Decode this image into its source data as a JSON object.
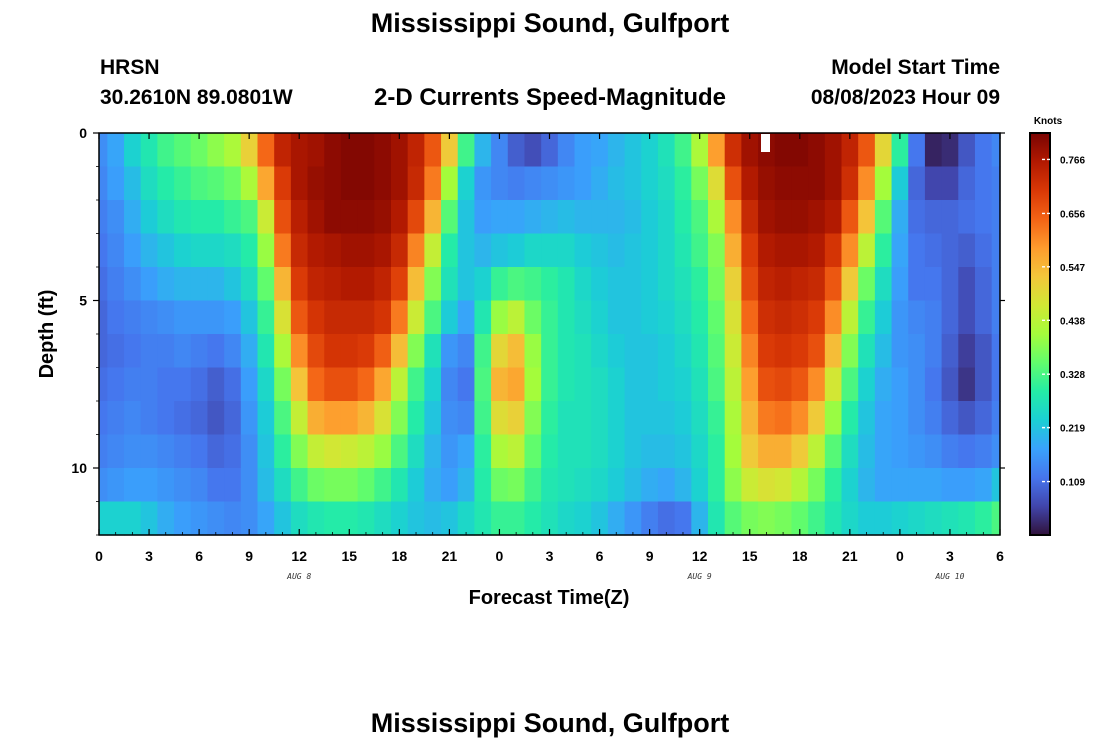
{
  "header": {
    "title": "Mississippi Sound, Gulfport",
    "station_id": "HRSN",
    "coords": "30.2610N  89.0801W",
    "subtitle": "2-D Currents Speed-Magnitude",
    "start_label": "Model Start Time",
    "start_value": "08/08/2023 Hour 09"
  },
  "footer": {
    "second_title": "Mississippi Sound, Gulfport"
  },
  "chart_data": {
    "type": "heatmap",
    "title": "2-D Currents Speed-Magnitude",
    "xlabel": "Forecast Time(Z)",
    "ylabel": "Depth (ft)",
    "x_range_hours": [
      0,
      54
    ],
    "y_range_ft": [
      0,
      12
    ],
    "x_tick_labels": [
      "0",
      "3",
      "6",
      "9",
      "12",
      "15",
      "18",
      "21",
      "0",
      "3",
      "6",
      "9",
      "12",
      "15",
      "18",
      "21",
      "0",
      "3",
      "6"
    ],
    "x_date_labels": [
      {
        "label": "AUG 8",
        "hour": 12
      },
      {
        "label": "AUG 9",
        "hour": 36
      },
      {
        "label": "AUG 10",
        "hour": 51
      }
    ],
    "y_ticks": [
      0,
      5,
      10
    ],
    "colorbar": {
      "label": "Knots",
      "min": 0.0,
      "max": 0.82,
      "ticks": [
        0.766,
        0.656,
        0.547,
        0.438,
        0.328,
        0.219,
        0.109
      ],
      "colors": [
        "#30123b",
        "#4145ab",
        "#4675ed",
        "#39a2fc",
        "#1bcfd4",
        "#24eca6",
        "#61fc6c",
        "#a4fc3b",
        "#d1e834",
        "#f3c63a",
        "#fe9b2d",
        "#f36315",
        "#d93806",
        "#b11901",
        "#7a0402"
      ]
    },
    "time_hours": [
      0,
      1,
      2,
      3,
      4,
      5,
      6,
      7,
      8,
      9,
      10,
      11,
      12,
      13,
      14,
      15,
      16,
      17,
      18,
      19,
      20,
      21,
      22,
      23,
      24,
      25,
      26,
      27,
      28,
      29,
      30,
      31,
      32,
      33,
      34,
      35,
      36,
      37,
      38,
      39,
      40,
      41,
      42,
      43,
      44,
      45,
      46,
      47,
      48,
      49,
      50,
      51,
      52,
      53,
      54
    ],
    "depths_ft": [
      0.5,
      1.5,
      2.5,
      3.5,
      4.5,
      5.5,
      6.5,
      7.5,
      8.5,
      9.5,
      10.5,
      11.5
    ],
    "speed_knots": [
      [
        0.15,
        0.18,
        0.24,
        0.28,
        0.32,
        0.34,
        0.36,
        0.39,
        0.42,
        0.51,
        0.64,
        0.74,
        0.77,
        0.78,
        0.8,
        0.81,
        0.81,
        0.8,
        0.78,
        0.74,
        0.66,
        0.52,
        0.32,
        0.2,
        0.14,
        0.09,
        0.07,
        0.1,
        0.14,
        0.17,
        0.18,
        0.2,
        0.22,
        0.24,
        0.27,
        0.32,
        0.42,
        0.58,
        0.72,
        0.78,
        0.8,
        0.81,
        0.81,
        0.8,
        0.78,
        0.74,
        0.66,
        0.5,
        0.3,
        0.12,
        0.02,
        0.03,
        0.08,
        0.12,
        0.14
      ],
      [
        0.14,
        0.17,
        0.21,
        0.26,
        0.29,
        0.31,
        0.33,
        0.34,
        0.36,
        0.42,
        0.57,
        0.7,
        0.77,
        0.79,
        0.8,
        0.81,
        0.81,
        0.8,
        0.78,
        0.73,
        0.62,
        0.41,
        0.24,
        0.16,
        0.14,
        0.13,
        0.14,
        0.15,
        0.16,
        0.17,
        0.19,
        0.21,
        0.22,
        0.24,
        0.26,
        0.3,
        0.37,
        0.49,
        0.67,
        0.76,
        0.79,
        0.8,
        0.8,
        0.8,
        0.78,
        0.72,
        0.6,
        0.41,
        0.23,
        0.1,
        0.06,
        0.06,
        0.1,
        0.12,
        0.13
      ],
      [
        0.13,
        0.15,
        0.19,
        0.23,
        0.26,
        0.28,
        0.29,
        0.29,
        0.31,
        0.33,
        0.46,
        0.67,
        0.75,
        0.78,
        0.8,
        0.8,
        0.8,
        0.79,
        0.76,
        0.68,
        0.55,
        0.34,
        0.22,
        0.17,
        0.18,
        0.18,
        0.19,
        0.2,
        0.21,
        0.2,
        0.2,
        0.2,
        0.21,
        0.23,
        0.25,
        0.29,
        0.33,
        0.42,
        0.6,
        0.73,
        0.78,
        0.79,
        0.79,
        0.78,
        0.76,
        0.66,
        0.53,
        0.34,
        0.19,
        0.11,
        0.1,
        0.1,
        0.11,
        0.12,
        0.13
      ],
      [
        0.12,
        0.14,
        0.17,
        0.2,
        0.22,
        0.24,
        0.25,
        0.25,
        0.26,
        0.29,
        0.4,
        0.62,
        0.73,
        0.76,
        0.77,
        0.78,
        0.78,
        0.77,
        0.73,
        0.61,
        0.45,
        0.29,
        0.22,
        0.2,
        0.22,
        0.23,
        0.25,
        0.25,
        0.25,
        0.23,
        0.22,
        0.21,
        0.22,
        0.23,
        0.25,
        0.28,
        0.32,
        0.38,
        0.56,
        0.7,
        0.76,
        0.77,
        0.77,
        0.76,
        0.71,
        0.6,
        0.44,
        0.3,
        0.18,
        0.12,
        0.11,
        0.1,
        0.09,
        0.11,
        0.13
      ],
      [
        0.11,
        0.13,
        0.15,
        0.17,
        0.19,
        0.2,
        0.2,
        0.2,
        0.22,
        0.26,
        0.35,
        0.55,
        0.7,
        0.74,
        0.75,
        0.76,
        0.76,
        0.74,
        0.69,
        0.54,
        0.38,
        0.27,
        0.22,
        0.24,
        0.31,
        0.33,
        0.32,
        0.3,
        0.28,
        0.25,
        0.23,
        0.22,
        0.22,
        0.23,
        0.25,
        0.27,
        0.3,
        0.37,
        0.51,
        0.68,
        0.74,
        0.75,
        0.74,
        0.73,
        0.66,
        0.52,
        0.36,
        0.26,
        0.17,
        0.12,
        0.12,
        0.1,
        0.07,
        0.1,
        0.13
      ],
      [
        0.1,
        0.12,
        0.13,
        0.14,
        0.15,
        0.16,
        0.16,
        0.16,
        0.17,
        0.22,
        0.31,
        0.48,
        0.66,
        0.71,
        0.73,
        0.73,
        0.73,
        0.71,
        0.62,
        0.46,
        0.33,
        0.23,
        0.18,
        0.28,
        0.4,
        0.44,
        0.36,
        0.31,
        0.28,
        0.26,
        0.24,
        0.22,
        0.22,
        0.23,
        0.24,
        0.26,
        0.29,
        0.35,
        0.48,
        0.64,
        0.72,
        0.73,
        0.72,
        0.7,
        0.6,
        0.44,
        0.31,
        0.23,
        0.16,
        0.14,
        0.13,
        0.1,
        0.07,
        0.1,
        0.13
      ],
      [
        0.1,
        0.11,
        0.12,
        0.13,
        0.13,
        0.14,
        0.13,
        0.12,
        0.14,
        0.19,
        0.28,
        0.42,
        0.6,
        0.68,
        0.71,
        0.71,
        0.7,
        0.65,
        0.54,
        0.38,
        0.27,
        0.16,
        0.14,
        0.32,
        0.5,
        0.54,
        0.4,
        0.31,
        0.28,
        0.27,
        0.25,
        0.23,
        0.22,
        0.22,
        0.23,
        0.25,
        0.28,
        0.34,
        0.46,
        0.61,
        0.7,
        0.71,
        0.7,
        0.67,
        0.54,
        0.38,
        0.27,
        0.21,
        0.16,
        0.15,
        0.13,
        0.09,
        0.05,
        0.08,
        0.12
      ],
      [
        0.11,
        0.12,
        0.13,
        0.13,
        0.12,
        0.12,
        0.11,
        0.09,
        0.11,
        0.17,
        0.25,
        0.37,
        0.53,
        0.64,
        0.67,
        0.67,
        0.64,
        0.57,
        0.44,
        0.32,
        0.24,
        0.14,
        0.12,
        0.33,
        0.55,
        0.57,
        0.41,
        0.31,
        0.28,
        0.27,
        0.26,
        0.24,
        0.22,
        0.22,
        0.23,
        0.24,
        0.27,
        0.33,
        0.44,
        0.58,
        0.67,
        0.68,
        0.66,
        0.6,
        0.47,
        0.33,
        0.24,
        0.19,
        0.17,
        0.15,
        0.12,
        0.08,
        0.04,
        0.08,
        0.12
      ],
      [
        0.12,
        0.13,
        0.14,
        0.13,
        0.12,
        0.11,
        0.1,
        0.08,
        0.1,
        0.16,
        0.23,
        0.33,
        0.45,
        0.56,
        0.58,
        0.58,
        0.55,
        0.48,
        0.38,
        0.29,
        0.22,
        0.15,
        0.14,
        0.32,
        0.49,
        0.51,
        0.38,
        0.3,
        0.27,
        0.27,
        0.26,
        0.24,
        0.22,
        0.22,
        0.22,
        0.23,
        0.26,
        0.31,
        0.42,
        0.55,
        0.62,
        0.63,
        0.6,
        0.52,
        0.4,
        0.29,
        0.22,
        0.18,
        0.17,
        0.15,
        0.13,
        0.1,
        0.08,
        0.1,
        0.13
      ],
      [
        0.13,
        0.14,
        0.15,
        0.15,
        0.14,
        0.13,
        0.12,
        0.1,
        0.11,
        0.15,
        0.22,
        0.3,
        0.38,
        0.45,
        0.47,
        0.46,
        0.44,
        0.4,
        0.33,
        0.26,
        0.2,
        0.16,
        0.18,
        0.3,
        0.42,
        0.44,
        0.35,
        0.29,
        0.27,
        0.27,
        0.26,
        0.24,
        0.22,
        0.21,
        0.21,
        0.22,
        0.25,
        0.3,
        0.41,
        0.52,
        0.56,
        0.56,
        0.52,
        0.44,
        0.34,
        0.26,
        0.21,
        0.18,
        0.17,
        0.16,
        0.15,
        0.13,
        0.12,
        0.13,
        0.15
      ],
      [
        0.15,
        0.16,
        0.17,
        0.17,
        0.16,
        0.15,
        0.14,
        0.12,
        0.12,
        0.15,
        0.21,
        0.26,
        0.32,
        0.36,
        0.37,
        0.37,
        0.35,
        0.32,
        0.28,
        0.23,
        0.19,
        0.17,
        0.2,
        0.29,
        0.36,
        0.37,
        0.32,
        0.28,
        0.27,
        0.26,
        0.25,
        0.23,
        0.21,
        0.19,
        0.18,
        0.2,
        0.24,
        0.3,
        0.39,
        0.46,
        0.48,
        0.47,
        0.43,
        0.37,
        0.3,
        0.24,
        0.2,
        0.18,
        0.18,
        0.18,
        0.18,
        0.17,
        0.17,
        0.18,
        0.22
      ],
      [
        0.24,
        0.24,
        0.24,
        0.22,
        0.19,
        0.17,
        0.16,
        0.15,
        0.14,
        0.15,
        0.18,
        0.22,
        0.26,
        0.28,
        0.29,
        0.29,
        0.28,
        0.26,
        0.24,
        0.22,
        0.21,
        0.22,
        0.25,
        0.28,
        0.31,
        0.31,
        0.29,
        0.27,
        0.25,
        0.24,
        0.22,
        0.19,
        0.16,
        0.13,
        0.11,
        0.12,
        0.2,
        0.28,
        0.34,
        0.37,
        0.38,
        0.37,
        0.35,
        0.32,
        0.28,
        0.25,
        0.23,
        0.23,
        0.24,
        0.25,
        0.26,
        0.27,
        0.28,
        0.3,
        0.33
      ]
    ]
  }
}
